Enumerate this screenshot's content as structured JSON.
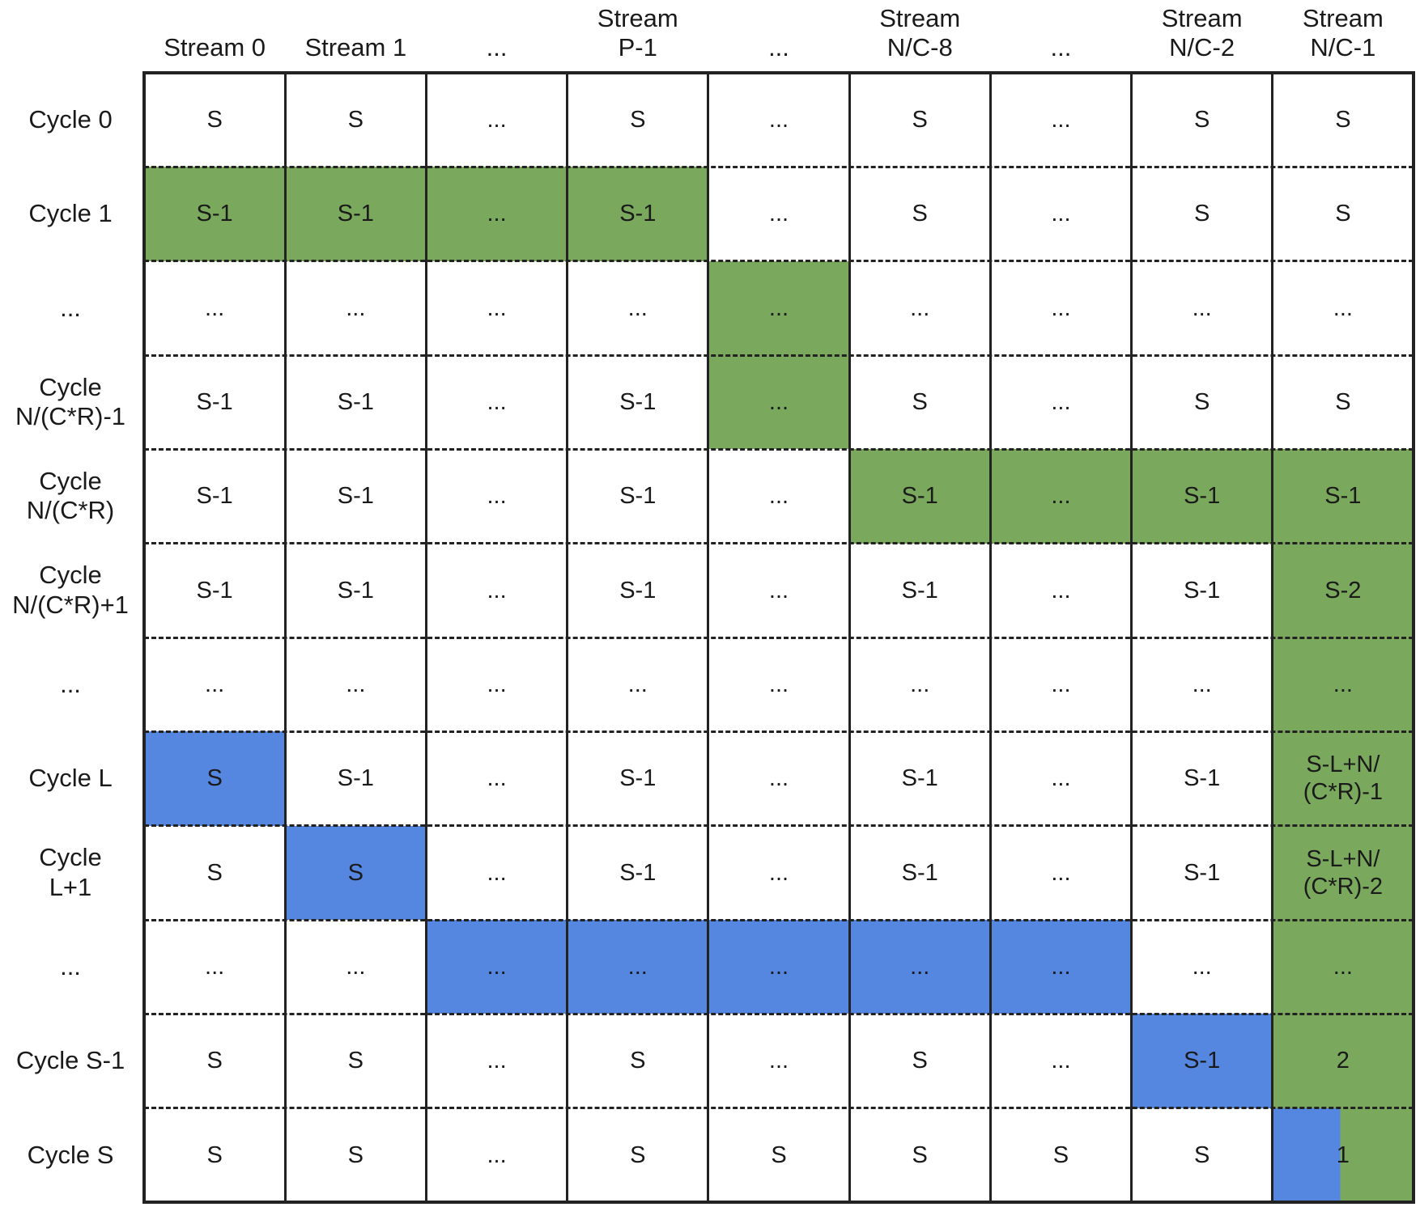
{
  "colors": {
    "green": "#7aa85c",
    "blue": "#5586e0",
    "white": "#ffffff",
    "grid": "#222222"
  },
  "column_headers": [
    "Stream 0",
    "Stream 1",
    "...",
    "Stream\nP-1",
    "...",
    "Stream\nN/C-8",
    "...",
    "Stream\nN/C-2",
    "Stream\nN/C-1"
  ],
  "row_headers": [
    "Cycle 0",
    "Cycle 1",
    "...",
    "Cycle\nN/(C*R)-1",
    "Cycle\nN/(C*R)",
    "Cycle\nN/(C*R)+1",
    "...",
    "Cycle L",
    "Cycle\nL+1",
    "...",
    "Cycle S-1",
    "Cycle S"
  ],
  "cells": [
    [
      "S",
      "S",
      "...",
      "S",
      "...",
      "S",
      "...",
      "S",
      "S"
    ],
    [
      "S-1",
      "S-1",
      "...",
      "S-1",
      "...",
      "S",
      "...",
      "S",
      "S"
    ],
    [
      "...",
      "...",
      "...",
      "...",
      "...",
      "...",
      "...",
      "...",
      "..."
    ],
    [
      "S-1",
      "S-1",
      "...",
      "S-1",
      "...",
      "S",
      "...",
      "S",
      "S"
    ],
    [
      "S-1",
      "S-1",
      "...",
      "S-1",
      "...",
      "S-1",
      "...",
      "S-1",
      "S-1"
    ],
    [
      "S-1",
      "S-1",
      "...",
      "S-1",
      "...",
      "S-1",
      "...",
      "S-1",
      "S-2"
    ],
    [
      "...",
      "...",
      "...",
      "...",
      "...",
      "...",
      "...",
      "...",
      "..."
    ],
    [
      "S",
      "S-1",
      "...",
      "S-1",
      "...",
      "S-1",
      "...",
      "S-1",
      "S-L+N/\n(C*R)-1"
    ],
    [
      "S",
      "S",
      "...",
      "S-1",
      "...",
      "S-1",
      "...",
      "S-1",
      "S-L+N/\n(C*R)-2"
    ],
    [
      "...",
      "...",
      "...",
      "...",
      "...",
      "...",
      "...",
      "...",
      "..."
    ],
    [
      "S",
      "S",
      "...",
      "S",
      "...",
      "S",
      "...",
      "S-1",
      "2"
    ],
    [
      "S",
      "S",
      "...",
      "S",
      "S",
      "S",
      "S",
      "S",
      "1"
    ]
  ],
  "fills": [
    [
      "w",
      "w",
      "w",
      "w",
      "w",
      "w",
      "w",
      "w",
      "w"
    ],
    [
      "g",
      "g",
      "g",
      "g",
      "w",
      "w",
      "w",
      "w",
      "w"
    ],
    [
      "w",
      "w",
      "w",
      "w",
      "g",
      "w",
      "w",
      "w",
      "w"
    ],
    [
      "w",
      "w",
      "w",
      "w",
      "g",
      "w",
      "w",
      "w",
      "w"
    ],
    [
      "w",
      "w",
      "w",
      "w",
      "w",
      "g",
      "g",
      "g",
      "g"
    ],
    [
      "w",
      "w",
      "w",
      "w",
      "w",
      "w",
      "w",
      "w",
      "g"
    ],
    [
      "w",
      "w",
      "w",
      "w",
      "w",
      "w",
      "w",
      "w",
      "g"
    ],
    [
      "b",
      "w",
      "w",
      "w",
      "w",
      "w",
      "w",
      "w",
      "g"
    ],
    [
      "w",
      "b",
      "w",
      "w",
      "w",
      "w",
      "w",
      "w",
      "g"
    ],
    [
      "w",
      "w",
      "b",
      "b",
      "b",
      "b",
      "b",
      "w",
      "g"
    ],
    [
      "w",
      "w",
      "w",
      "w",
      "w",
      "w",
      "w",
      "b",
      "g"
    ],
    [
      "w",
      "w",
      "w",
      "w",
      "w",
      "w",
      "w",
      "w",
      "bg"
    ]
  ]
}
